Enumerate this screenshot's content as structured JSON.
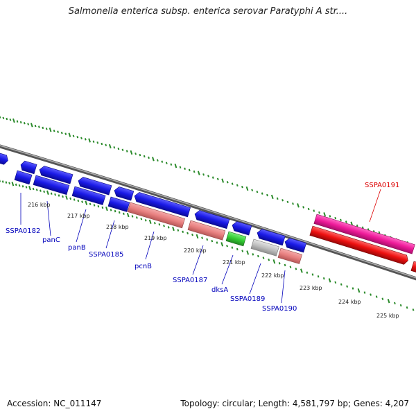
{
  "title": "Salmonella enterica subsp. enterica serovar Paratyphi A str....",
  "footer": {
    "accession": "Accession: NC_011147",
    "summary": "Topology: circular; Length: 4,581,797 bp; Genes: 4,207"
  },
  "colors": {
    "background": "#ffffff",
    "backbone": "#888888",
    "dots": "#2a8a2a",
    "gene_blue": "#1a1ae6",
    "rrna_salmon": "#e88080",
    "trna_green": "#33cc33",
    "pseudogene_gray": "#c0c0c0",
    "mobile_pink": "#ee1a99",
    "highlight_red": "#ee1111",
    "label_blue": "#0000bb",
    "label_red": "#dd0000"
  },
  "ticks": [
    {
      "label": "216 kbp"
    },
    {
      "label": "217 kbp"
    },
    {
      "label": "218 kbp"
    },
    {
      "label": "219 kbp"
    },
    {
      "label": "220 kbp"
    },
    {
      "label": "221 kbp"
    },
    {
      "label": "222 kbp"
    },
    {
      "label": "223 kbp"
    },
    {
      "label": "224 kbp"
    },
    {
      "label": "225 kbp"
    }
  ],
  "gene_labels": [
    {
      "text": "SSPA0182",
      "color": "blue"
    },
    {
      "text": "panC",
      "color": "blue"
    },
    {
      "text": "panB",
      "color": "blue"
    },
    {
      "text": "SSPA0185",
      "color": "blue"
    },
    {
      "text": "pcnB",
      "color": "blue"
    },
    {
      "text": "SSPA0187",
      "color": "blue"
    },
    {
      "text": "dksA",
      "color": "blue"
    },
    {
      "text": "SSPA0189",
      "color": "blue"
    },
    {
      "text": "SSPA0190",
      "color": "blue"
    },
    {
      "text": "SSPA0191",
      "color": "red"
    }
  ]
}
